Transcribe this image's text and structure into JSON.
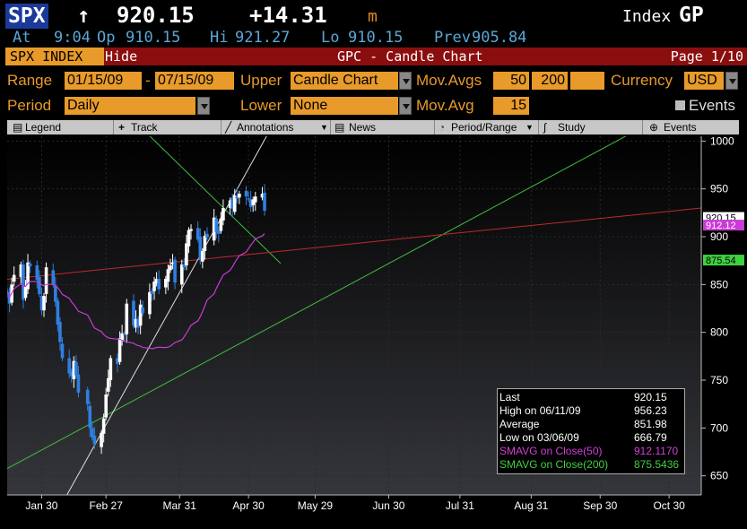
{
  "quote": {
    "ticker": "SPX",
    "arrow": "↑",
    "last": "920.15",
    "change": "+14.31",
    "m_flag": "m",
    "type_label": "Index",
    "function": "GP",
    "at_label": "At",
    "at_time": "9:04",
    "open_label": "Op",
    "open": "910.15",
    "high_label": "Hi",
    "high": "921.27",
    "low_label": "Lo",
    "low": "910.15",
    "prev_label": "Prev",
    "prev": "905.84"
  },
  "titlebar": {
    "security": "SPX INDEX",
    "hide": "Hide",
    "title": "GPC - Candle Chart",
    "page": "Page 1/10"
  },
  "controls": {
    "range_label": "Range",
    "range_start": "01/15/09",
    "range_dash": "-",
    "range_end": "07/15/09",
    "upper_label": "Upper",
    "upper_value": "Candle Chart",
    "movavgs_label": "Mov.Avgs",
    "movavg1": "50",
    "movavg2": "200",
    "movavg3": "",
    "currency_label": "Currency",
    "currency_value": "USD",
    "period_label": "Period",
    "period_value": "Daily",
    "lower_label": "Lower",
    "lower_value": "None",
    "movavg_label": "Mov.Avg",
    "movavg_lower": "15",
    "events_label": "Events"
  },
  "toolbar": {
    "legend": "Legend",
    "track": "Track",
    "annotations": "Annotations",
    "news": "News",
    "period_range": "Period/Range",
    "study": "Study",
    "events": "Events"
  },
  "colors": {
    "accent": "#e89a2a",
    "title_bar": "#8b0e0e",
    "sma50": "#c93bd6",
    "sma200": "#2ecc40",
    "trend_red": "#c0292b",
    "up_candle": "#ffffff",
    "down_candle": "#2f7fe0"
  },
  "chart_data": {
    "type": "candlestick",
    "title": "GPC - Candle Chart",
    "ylim": [
      630,
      1005
    ],
    "yticks": [
      650,
      700,
      750,
      800,
      850,
      900,
      950,
      1000
    ],
    "xticks": [
      "Jan 30",
      "Feb 27",
      "Mar 31",
      "Apr 30",
      "May 29",
      "Jun 30",
      "Jul 31",
      "Aug 31",
      "Sep 30",
      "Oct 30"
    ],
    "xtick_days": [
      15,
      43,
      75,
      105,
      134,
      166,
      197,
      228,
      258,
      288
    ],
    "x_days_end": 302,
    "x_day_zero": "2009-01-15",
    "closes": [
      [
        0,
        843
      ],
      [
        1,
        830
      ],
      [
        2,
        850
      ],
      [
        3,
        860
      ],
      [
        6,
        871
      ],
      [
        7,
        834
      ],
      [
        8,
        848
      ],
      [
        9,
        873
      ],
      [
        10,
        869
      ],
      [
        13,
        855
      ],
      [
        14,
        840
      ],
      [
        15,
        823
      ],
      [
        16,
        838
      ],
      [
        17,
        868
      ],
      [
        20,
        850
      ],
      [
        21,
        832
      ],
      [
        22,
        808
      ],
      [
        23,
        790
      ],
      [
        24,
        773
      ],
      [
        27,
        757
      ],
      [
        28,
        754
      ],
      [
        29,
        770
      ],
      [
        30,
        755
      ],
      [
        31,
        737
      ],
      [
        35,
        725
      ],
      [
        36,
        700
      ],
      [
        37,
        690
      ],
      [
        38,
        683
      ],
      [
        41,
        695
      ],
      [
        42,
        710
      ],
      [
        43,
        735
      ],
      [
        44,
        752
      ],
      [
        45,
        773
      ],
      [
        48,
        767
      ],
      [
        49,
        794
      ],
      [
        50,
        799
      ],
      [
        51,
        797
      ],
      [
        52,
        830
      ],
      [
        55,
        807
      ],
      [
        56,
        814
      ],
      [
        57,
        805
      ],
      [
        58,
        829
      ],
      [
        59,
        820
      ],
      [
        62,
        842
      ],
      [
        63,
        840
      ],
      [
        64,
        853
      ],
      [
        65,
        856
      ],
      [
        66,
        845
      ],
      [
        69,
        856
      ],
      [
        70,
        866
      ],
      [
        71,
        870
      ],
      [
        72,
        873
      ],
      [
        73,
        852
      ],
      [
        76,
        871
      ],
      [
        77,
        868
      ],
      [
        78,
        893
      ],
      [
        79,
        907
      ],
      [
        80,
        908
      ],
      [
        83,
        897
      ],
      [
        84,
        876
      ],
      [
        85,
        885
      ],
      [
        86,
        901
      ],
      [
        87,
        899
      ],
      [
        90,
        920
      ],
      [
        91,
        905
      ],
      [
        92,
        903
      ],
      [
        93,
        919
      ],
      [
        94,
        930
      ],
      [
        97,
        938
      ],
      [
        98,
        929
      ],
      [
        99,
        943
      ],
      [
        100,
        940
      ],
      [
        101,
        945
      ],
      [
        104,
        942
      ],
      [
        105,
        939
      ],
      [
        106,
        931
      ],
      [
        107,
        939
      ],
      [
        108,
        942
      ],
      [
        111,
        945
      ],
      [
        112,
        927
      ]
    ],
    "summary": {
      "last_label": "Last",
      "last": "920.15",
      "high_label": "High on  06/11/09",
      "high": "956.23",
      "avg_label": "Average",
      "avg": "851.98",
      "low_label": "Low on  03/06/09",
      "low": "666.79",
      "sma50_label": "SMAVG on Close(50)",
      "sma50": "912.1170",
      "sma200_label": "SMAVG on Close(200)",
      "sma200": "875.5436"
    },
    "price_tags": [
      "920.15",
      "912.12",
      "875.54"
    ]
  }
}
